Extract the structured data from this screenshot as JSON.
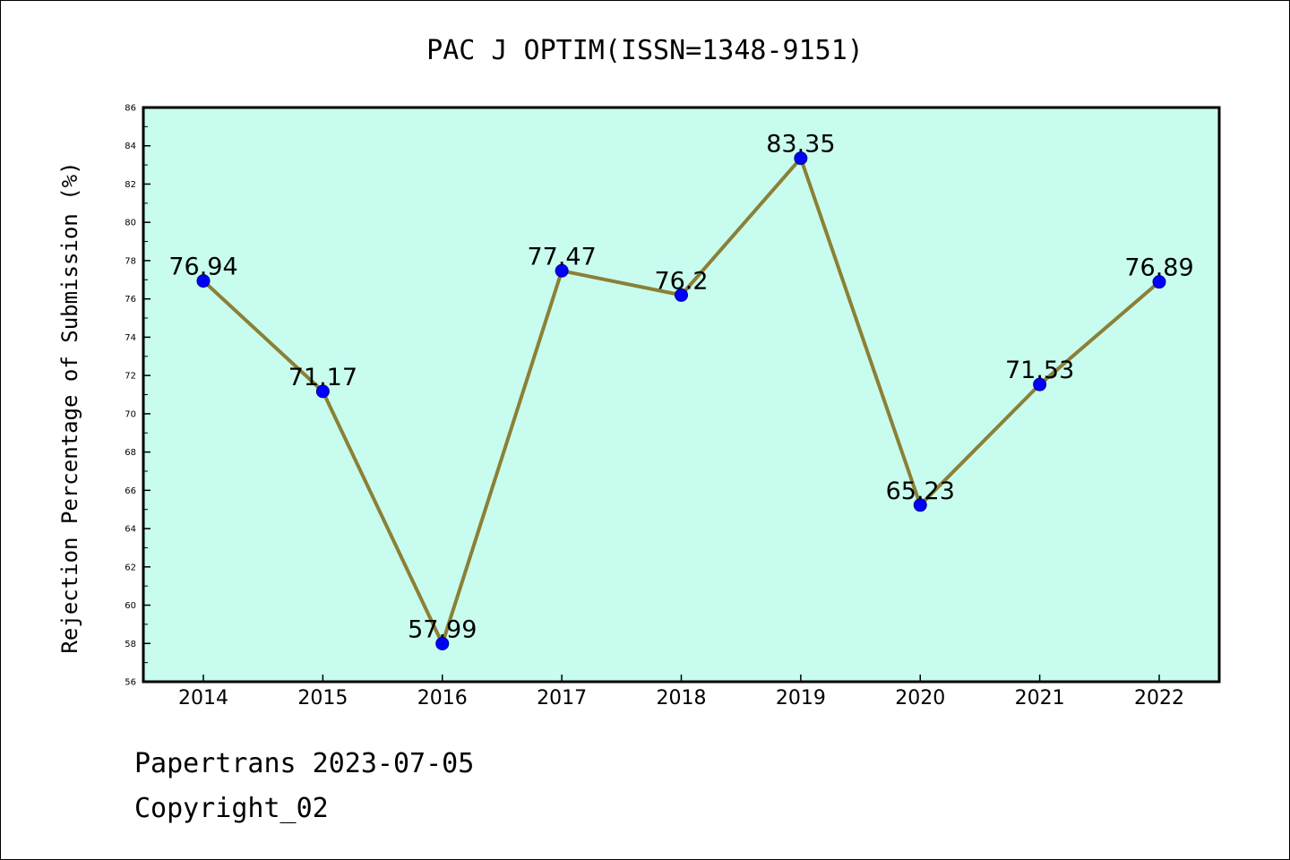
{
  "chart_data": {
    "type": "line",
    "title": "PAC J OPTIM(ISSN=1348-9151)",
    "ylabel": "Rejection Percentage of Submission (%)",
    "xlabel": "",
    "categories": [
      "2014",
      "2015",
      "2016",
      "2017",
      "2018",
      "2019",
      "2020",
      "2021",
      "2022"
    ],
    "values": [
      76.94,
      71.17,
      57.99,
      77.47,
      76.2,
      83.35,
      65.23,
      71.53,
      76.89
    ],
    "data_labels": [
      "76.94",
      "71.17",
      "57.99",
      "77.47",
      "76.2",
      "83.35",
      "65.23",
      "71.53",
      "76.89"
    ],
    "ylim": [
      56,
      86
    ],
    "yticks": [
      56,
      58,
      60,
      62,
      64,
      66,
      68,
      70,
      72,
      74,
      76,
      78,
      80,
      82,
      84,
      86
    ],
    "grid": false,
    "colors": {
      "plot_background": "#c8fcee",
      "line": "#8b8036",
      "marker": "#0000ff",
      "marker_edge": "#00008b"
    }
  },
  "footer": {
    "line1": "Papertrans 2023-07-05",
    "line2": "Copyright_02"
  }
}
